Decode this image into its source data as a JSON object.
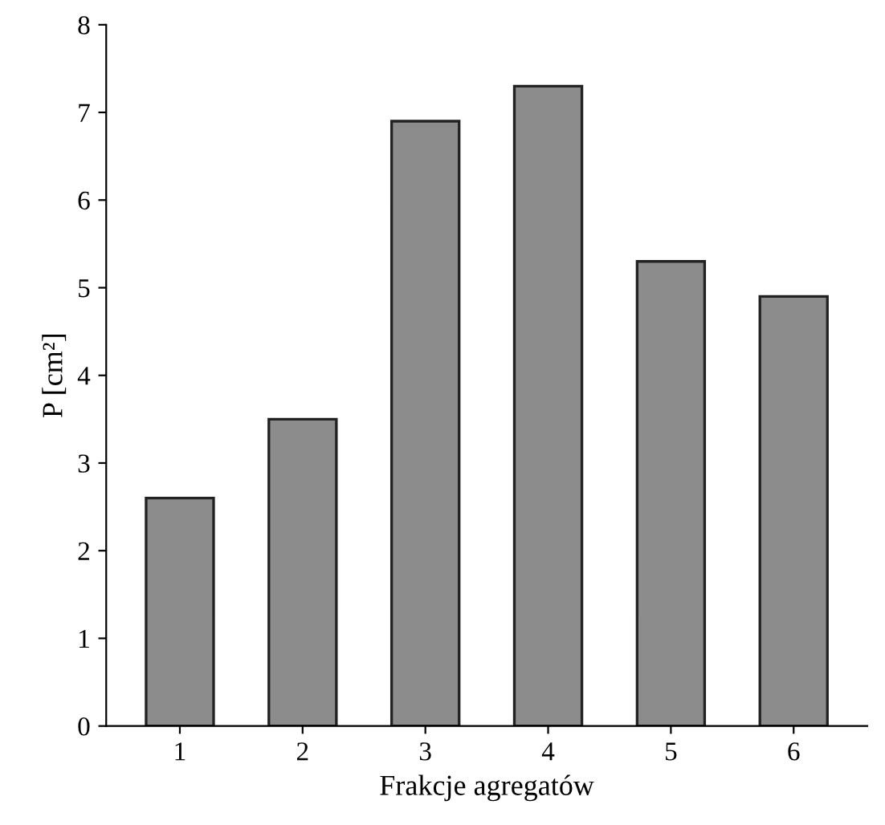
{
  "chart_data": {
    "type": "bar",
    "xlabel": "Frakcje agregatów",
    "ylabel": "P [cm²]",
    "categories": [
      "1",
      "2",
      "3",
      "4",
      "5",
      "6"
    ],
    "values": [
      2.6,
      3.5,
      6.9,
      7.3,
      5.3,
      4.9
    ],
    "color": "#8c8c8c",
    "ylim": [
      0,
      8
    ],
    "yticks": [
      0,
      1,
      2,
      3,
      4,
      5,
      6,
      7,
      8
    ],
    "grid": false
  }
}
